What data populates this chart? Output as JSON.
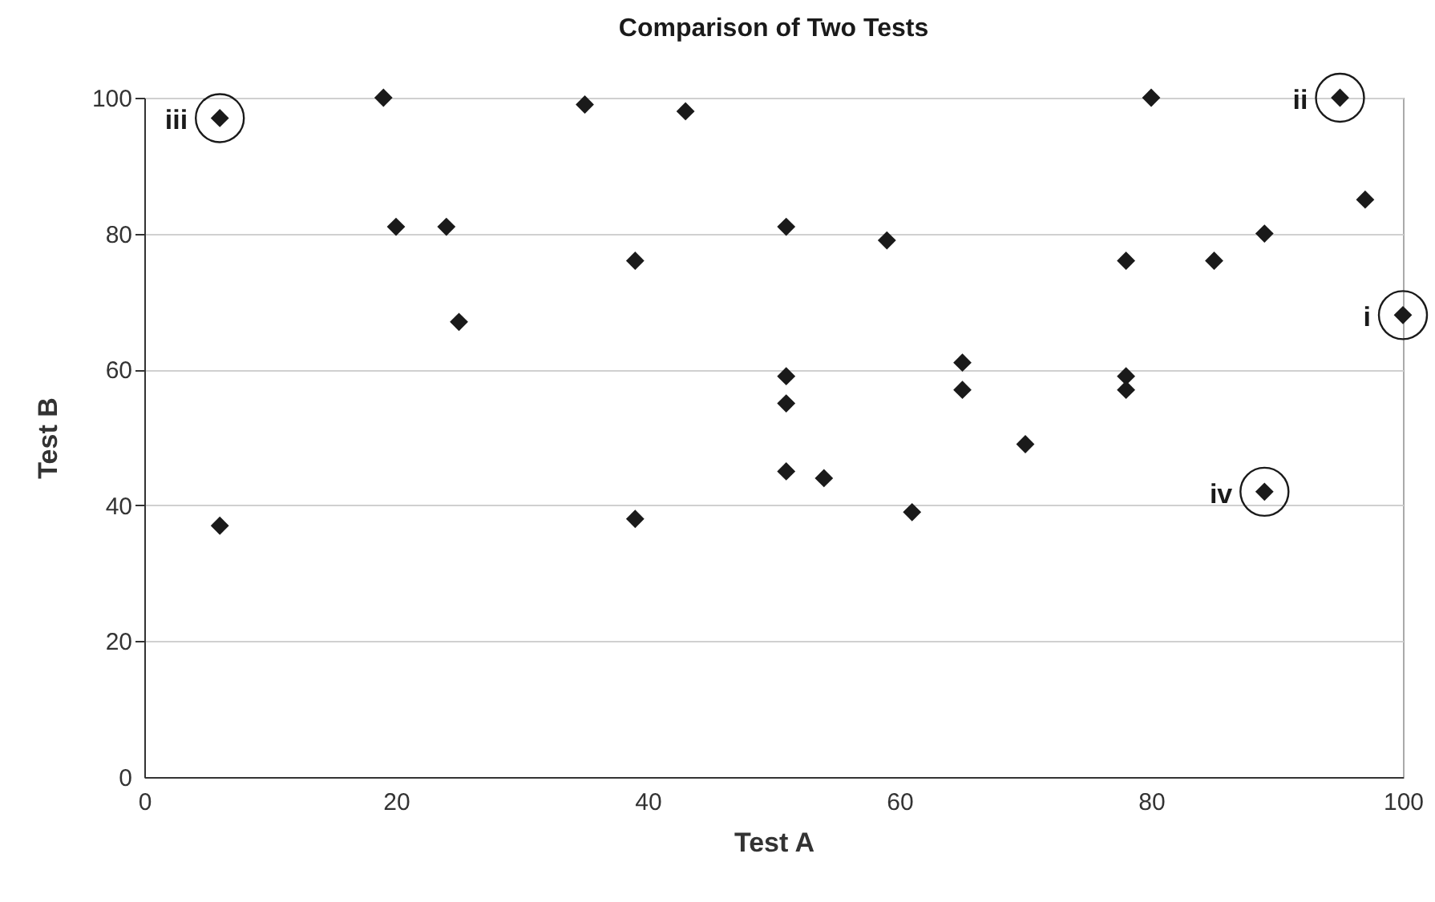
{
  "chart_data": {
    "type": "scatter",
    "title": "Comparison of Two Tests",
    "xlabel": "Test A",
    "ylabel": "Test B",
    "x": [
      6,
      6,
      19,
      20,
      24,
      25,
      35,
      39,
      39,
      43,
      51,
      51,
      51,
      51,
      54,
      59,
      61,
      65,
      65,
      70,
      78,
      78,
      78,
      80,
      85,
      89,
      89,
      95,
      97,
      100
    ],
    "series": [
      {
        "color": "#1a1a1a",
        "values": [
          37,
          97,
          100,
          81,
          81,
          67,
          99,
          76,
          38,
          98,
          81,
          59,
          55,
          45,
          44,
          79,
          39,
          61,
          57,
          49,
          76,
          59,
          57,
          100,
          76,
          80,
          42,
          100,
          85,
          68
        ]
      }
    ],
    "xlim": [
      0,
      100
    ],
    "xticks": [
      0,
      20,
      40,
      60,
      80,
      100
    ],
    "ylim": [
      0,
      100
    ],
    "yticks": [
      0,
      20,
      40,
      60,
      80,
      100
    ],
    "grid": "y",
    "marker": "diamond",
    "annotations": [
      {
        "text": "i",
        "x": 100,
        "y": 68
      },
      {
        "text": "ii",
        "x": 95,
        "y": 100
      },
      {
        "text": "iii",
        "x": 6,
        "y": 97
      },
      {
        "text": "iv",
        "x": 89,
        "y": 42
      }
    ]
  }
}
